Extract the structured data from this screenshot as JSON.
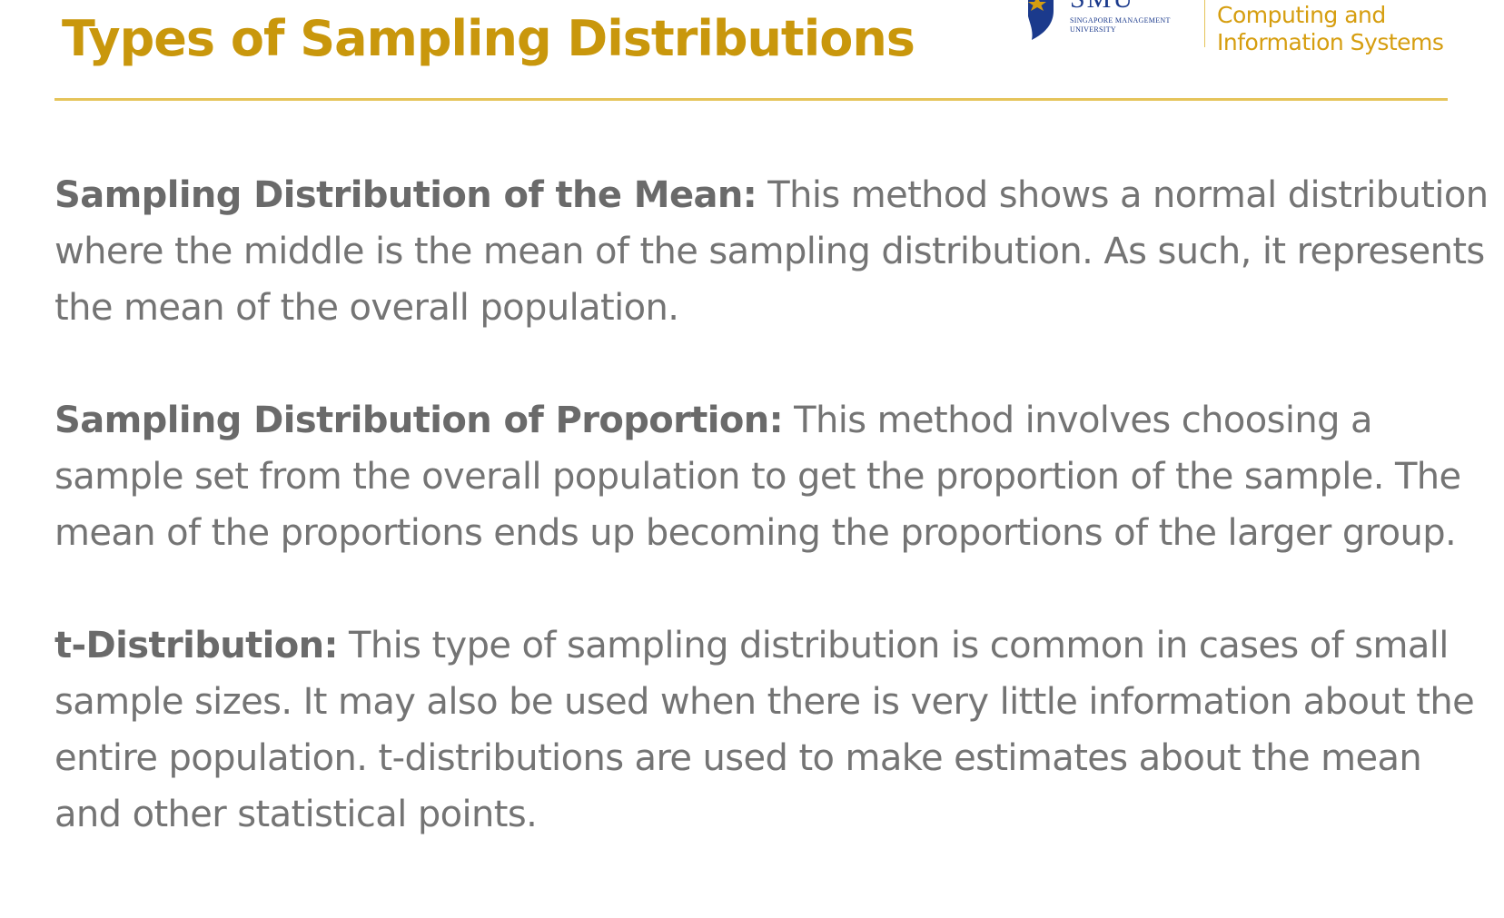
{
  "slide": {
    "title": "Types of Sampling Distributions"
  },
  "logo": {
    "crest_icon": "smu-crest-icon",
    "university_short": "SMU",
    "university_full": "Singapore Management University",
    "school_line1": "Computing and",
    "school_line2": "Information Systems",
    "colors": {
      "smu_blue": "#1b3a8c",
      "gold": "#d69e10"
    }
  },
  "items": [
    {
      "term": "Sampling Distribution of the Mean:",
      "text": " This method shows a normal distribution where the middle is the mean of the sampling distribution. As such, it represents the mean of the overall population."
    },
    {
      "term": "Sampling Distribution of Proportion:",
      "text": " This method involves choosing a sample set from the overall population to get the proportion of the sample. The mean of the proportions ends up becoming the proportions of the larger group."
    },
    {
      "term": "t-Distribution:",
      "text": " This type of sampling distribution is common in cases of small sample sizes. It may also be used when there is very little information about the entire population. t-distributions are used to make estimates about the mean and other statistical points."
    }
  ],
  "theme": {
    "title_color": "#c9970c",
    "rule_color": "#e5c45a",
    "body_color": "#747474"
  }
}
